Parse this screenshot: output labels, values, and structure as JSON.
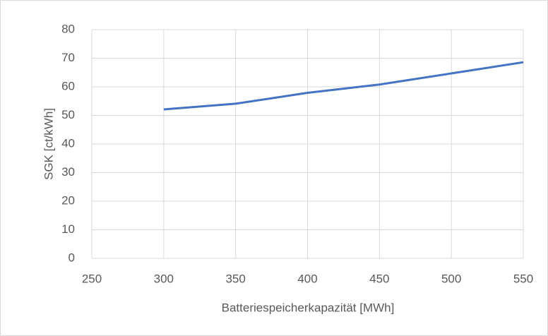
{
  "chart_data": {
    "type": "line",
    "x": [
      300,
      350,
      400,
      450,
      500,
      550
    ],
    "series": [
      {
        "name": "SGK",
        "color": "#4472c4",
        "values": [
          52.1,
          54.1,
          57.9,
          60.8,
          64.7,
          68.6
        ]
      }
    ],
    "xlabel": "Batteriespeicherkapazität [MWh]",
    "ylabel": "SGK [ct/kWh]",
    "xlim": [
      250,
      550
    ],
    "xticks": [
      250,
      300,
      350,
      400,
      450,
      500,
      550
    ],
    "ylim": [
      0,
      80
    ],
    "yticks": [
      0,
      10,
      20,
      30,
      40,
      50,
      60,
      70,
      80
    ],
    "grid": true
  }
}
